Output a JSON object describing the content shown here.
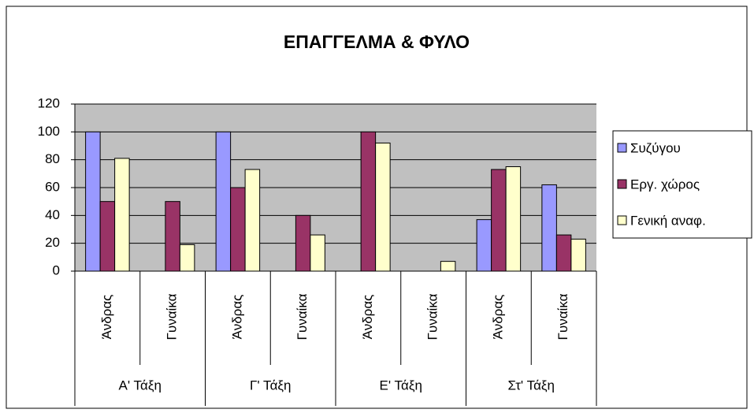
{
  "chart_data": {
    "type": "bar",
    "title": "ΕΠΑΓΓΕΛΜΑ & ΦΥΛΟ",
    "categories": [
      "Άνδρας",
      "Γυναίκα",
      "Άνδρας",
      "Γυναίκα",
      "Άνδρας",
      "Γυναίκα",
      "Άνδρας",
      "Γυναίκα"
    ],
    "groups": [
      "Α' Τάξη",
      "Γ' Τάξη",
      "Ε' Τάξη",
      "Στ' Τάξη"
    ],
    "series": [
      {
        "name": "Συζύγου",
        "color": "#9999ff",
        "values": [
          100,
          0,
          100,
          0,
          0,
          0,
          37,
          62
        ]
      },
      {
        "name": "Εργ. χώρος",
        "color": "#993366",
        "values": [
          50,
          50,
          60,
          40,
          100,
          0,
          73,
          26
        ]
      },
      {
        "name": "Γενική αναφ.",
        "color": "#ffffcc",
        "values": [
          81,
          19,
          73,
          26,
          92,
          7,
          75,
          23
        ]
      }
    ],
    "ylim": [
      0,
      120
    ],
    "yticks": [
      0,
      20,
      40,
      60,
      80,
      100,
      120
    ],
    "grid": true,
    "legend": "right"
  }
}
